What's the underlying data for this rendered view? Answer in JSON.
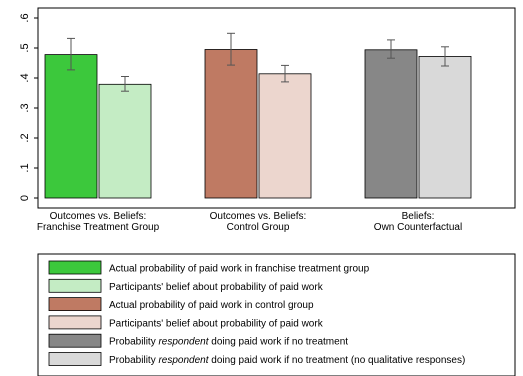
{
  "chart_data": {
    "type": "bar",
    "ylim": [
      0,
      0.6
    ],
    "y_ticks": [
      {
        "value": 0,
        "label": "0"
      },
      {
        "value": 0.1,
        "label": ".1"
      },
      {
        "value": 0.2,
        "label": ".2"
      },
      {
        "value": 0.3,
        "label": ".3"
      },
      {
        "value": 0.4,
        "label": ".4"
      },
      {
        "value": 0.5,
        "label": ".5"
      },
      {
        "value": 0.6,
        "label": ".6"
      }
    ],
    "grid": false,
    "legend_position": "bottom",
    "groups": [
      {
        "label_lines": [
          "Outcomes vs. Beliefs:",
          "Franchise Treatment Group"
        ],
        "bars": [
          {
            "series": 0,
            "value": 0.478,
            "ci": [
              0.427,
              0.532
            ]
          },
          {
            "series": 1,
            "value": 0.379,
            "ci": [
              0.356,
              0.405
            ]
          }
        ]
      },
      {
        "label_lines": [
          "Outcomes vs. Beliefs:",
          "Control Group"
        ],
        "bars": [
          {
            "series": 2,
            "value": 0.495,
            "ci": [
              0.443,
              0.549
            ]
          },
          {
            "series": 3,
            "value": 0.414,
            "ci": [
              0.387,
              0.442
            ]
          }
        ]
      },
      {
        "label_lines": [
          "Beliefs:",
          "Own Counterfactual"
        ],
        "bars": [
          {
            "series": 4,
            "value": 0.494,
            "ci": [
              0.466,
              0.527
            ]
          },
          {
            "series": 5,
            "value": 0.472,
            "ci": [
              0.44,
              0.504
            ]
          }
        ]
      }
    ],
    "series": [
      {
        "color": "#3cc83c",
        "legend": [
          {
            "t": "Actual probability of paid work in franchise treatment group",
            "i": false
          }
        ]
      },
      {
        "color": "#c4ecc4",
        "legend": [
          {
            "t": "Participants' belief about probability of paid work",
            "i": false
          }
        ]
      },
      {
        "color": "#bf7a63",
        "legend": [
          {
            "t": "Actual probability of paid work in control group",
            "i": false
          }
        ]
      },
      {
        "color": "#ecd6ce",
        "legend": [
          {
            "t": "Participants' belief about probability of paid work",
            "i": false
          }
        ]
      },
      {
        "color": "#878787",
        "legend": [
          {
            "t": "Probability ",
            "i": false
          },
          {
            "t": "respondent",
            "i": true
          },
          {
            "t": " doing paid work if no treatment",
            "i": false
          }
        ]
      },
      {
        "color": "#d9d9d9",
        "legend": [
          {
            "t": "Probability ",
            "i": false
          },
          {
            "t": "respondent",
            "i": true
          },
          {
            "t": " doing paid work if no treatment (no qualitative responses)",
            "i": false
          }
        ]
      }
    ]
  }
}
